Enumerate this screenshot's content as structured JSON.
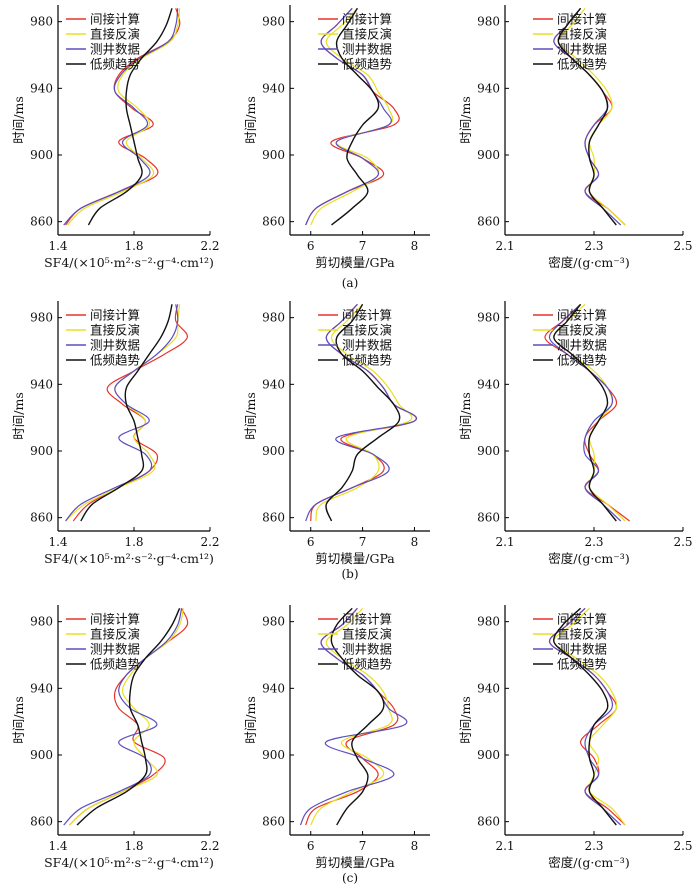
{
  "legend_labels": [
    "间接计算",
    "直接反演",
    "测井数据",
    "低频趋势"
  ],
  "colors": {
    "indirect": "#e8332a",
    "direct": "#e8e020",
    "well": "#5b4fc0",
    "trend": "#111111",
    "axis": "#000000"
  },
  "captions": [
    "(a)",
    "(b)",
    "(c)"
  ],
  "chart_data": [
    {
      "row": 0,
      "col": 0,
      "type": "line",
      "xlabel": "SF4/(×10⁵·m²·s⁻²·g⁻⁴·cm¹²)",
      "ylabel": "时间/ms",
      "xlim": [
        1.4,
        2.2
      ],
      "ylim": [
        852,
        990
      ],
      "xticks": [
        "1.4",
        "1.8",
        "2.2"
      ],
      "xtick_values": [
        1.4,
        1.8,
        2.2
      ],
      "yticks": [
        "860",
        "900",
        "940",
        "980"
      ],
      "ytick_values": [
        860,
        900,
        940,
        980
      ],
      "y": [
        988,
        978,
        968,
        958,
        948,
        938,
        928,
        918,
        908,
        898,
        888,
        878,
        868,
        858
      ],
      "series": [
        {
          "name": "间接计算",
          "key": "indirect",
          "values": [
            2.02,
            2.04,
            1.98,
            1.82,
            1.72,
            1.7,
            1.79,
            1.9,
            1.72,
            1.86,
            1.92,
            1.72,
            1.52,
            1.44
          ]
        },
        {
          "name": "直接反演",
          "key": "direct",
          "values": [
            2.04,
            2.03,
            1.99,
            1.84,
            1.74,
            1.72,
            1.82,
            1.88,
            1.76,
            1.84,
            1.9,
            1.74,
            1.54,
            1.45
          ]
        },
        {
          "name": "测井数据",
          "key": "well",
          "values": [
            2.03,
            2.02,
            1.98,
            1.83,
            1.73,
            1.7,
            1.8,
            1.87,
            1.74,
            1.83,
            1.88,
            1.72,
            1.52,
            1.43
          ]
        },
        {
          "name": "低频趋势",
          "key": "trend",
          "values": [
            2.0,
            1.97,
            1.92,
            1.84,
            1.78,
            1.76,
            1.76,
            1.78,
            1.8,
            1.82,
            1.84,
            1.76,
            1.62,
            1.56
          ]
        }
      ]
    },
    {
      "row": 0,
      "col": 1,
      "type": "line",
      "xlabel": "剪切模量/GPa",
      "ylabel": "时间/ms",
      "xlim": [
        5.6,
        8.3
      ],
      "ylim": [
        852,
        990
      ],
      "xticks": [
        "6",
        "7",
        "8"
      ],
      "xtick_values": [
        6,
        7,
        8
      ],
      "yticks": [
        "860",
        "900",
        "940",
        "980"
      ],
      "ytick_values": [
        860,
        900,
        940,
        980
      ],
      "y": [
        988,
        978,
        968,
        958,
        948,
        938,
        928,
        918,
        908,
        898,
        888,
        878,
        868,
        858
      ],
      "series": [
        {
          "name": "间接计算",
          "key": "indirect",
          "values": [
            6.8,
            6.5,
            6.2,
            6.5,
            7.0,
            7.2,
            7.6,
            7.6,
            6.4,
            7.0,
            7.4,
            6.7,
            6.1,
            5.9
          ]
        },
        {
          "name": "直接反演",
          "key": "direct",
          "values": [
            6.9,
            6.6,
            6.3,
            6.6,
            7.1,
            7.3,
            7.5,
            7.5,
            6.5,
            7.1,
            7.3,
            6.8,
            6.2,
            6.0
          ]
        },
        {
          "name": "测井数据",
          "key": "well",
          "values": [
            6.8,
            6.5,
            6.2,
            6.5,
            7.0,
            7.2,
            7.4,
            7.5,
            6.5,
            7.0,
            7.3,
            6.7,
            6.1,
            5.9
          ]
        },
        {
          "name": "低频趋势",
          "key": "trend",
          "values": [
            6.9,
            6.7,
            6.5,
            6.6,
            6.9,
            7.2,
            7.3,
            7.0,
            6.8,
            6.7,
            6.9,
            7.1,
            6.8,
            6.4
          ]
        }
      ]
    },
    {
      "row": 0,
      "col": 2,
      "type": "line",
      "xlabel": "密度/(g·cm⁻³)",
      "ylabel": "时间/ms",
      "xlim": [
        2.1,
        2.5
      ],
      "ylim": [
        852,
        990
      ],
      "xticks": [
        "2.1",
        "2.3",
        "2.5"
      ],
      "xtick_values": [
        2.1,
        2.3,
        2.5
      ],
      "yticks": [
        "860",
        "900",
        "940",
        "980"
      ],
      "ytick_values": [
        860,
        900,
        940,
        980
      ],
      "y": [
        988,
        978,
        968,
        958,
        948,
        938,
        928,
        918,
        908,
        898,
        888,
        878,
        868,
        858
      ],
      "series": [
        {
          "name": "间接计算",
          "key": "indirect",
          "values": [
            2.27,
            2.24,
            2.21,
            2.25,
            2.29,
            2.32,
            2.34,
            2.3,
            2.28,
            2.29,
            2.31,
            2.28,
            2.33,
            2.37
          ]
        },
        {
          "name": "直接反演",
          "key": "direct",
          "values": [
            2.28,
            2.25,
            2.22,
            2.26,
            2.3,
            2.33,
            2.34,
            2.31,
            2.29,
            2.3,
            2.3,
            2.29,
            2.33,
            2.37
          ]
        },
        {
          "name": "测井数据",
          "key": "well",
          "values": [
            2.27,
            2.24,
            2.21,
            2.25,
            2.29,
            2.32,
            2.33,
            2.3,
            2.28,
            2.29,
            2.31,
            2.28,
            2.32,
            2.36
          ]
        },
        {
          "name": "低频趋势",
          "key": "trend",
          "values": [
            2.27,
            2.24,
            2.22,
            2.25,
            2.29,
            2.32,
            2.33,
            2.31,
            2.29,
            2.29,
            2.3,
            2.29,
            2.32,
            2.35
          ]
        }
      ]
    },
    {
      "row": 1,
      "col": 0,
      "type": "line",
      "xlabel": "SF4/(×10⁵·m²·s⁻²·g⁻⁴·cm¹²)",
      "ylabel": "时间/ms",
      "xlim": [
        1.4,
        2.2
      ],
      "ylim": [
        852,
        990
      ],
      "xticks": [
        "1.4",
        "1.8",
        "2.2"
      ],
      "xtick_values": [
        1.4,
        1.8,
        2.2
      ],
      "yticks": [
        "860",
        "900",
        "940",
        "980"
      ],
      "ytick_values": [
        860,
        900,
        940,
        980
      ],
      "y": [
        988,
        978,
        968,
        958,
        948,
        938,
        928,
        918,
        908,
        898,
        888,
        878,
        868,
        858
      ],
      "series": [
        {
          "name": "间接计算",
          "key": "indirect",
          "values": [
            2.03,
            2.02,
            2.08,
            1.96,
            1.8,
            1.66,
            1.74,
            1.86,
            1.8,
            1.92,
            1.88,
            1.72,
            1.56,
            1.48
          ]
        },
        {
          "name": "直接反演",
          "key": "direct",
          "values": [
            2.04,
            2.03,
            2.02,
            1.92,
            1.8,
            1.7,
            1.76,
            1.86,
            1.8,
            1.88,
            1.9,
            1.72,
            1.54,
            1.44
          ]
        },
        {
          "name": "测井数据",
          "key": "well",
          "values": [
            2.02,
            2.03,
            2.0,
            1.92,
            1.8,
            1.7,
            1.76,
            1.88,
            1.72,
            1.86,
            1.88,
            1.7,
            1.52,
            1.44
          ]
        },
        {
          "name": "低频趋势",
          "key": "trend",
          "values": [
            2.0,
            1.98,
            1.94,
            1.88,
            1.82,
            1.76,
            1.76,
            1.8,
            1.82,
            1.84,
            1.84,
            1.72,
            1.58,
            1.52
          ]
        }
      ]
    },
    {
      "row": 1,
      "col": 1,
      "type": "line",
      "xlabel": "剪切模量/GPa",
      "ylabel": "时间/ms",
      "xlim": [
        5.6,
        8.3
      ],
      "ylim": [
        852,
        990
      ],
      "xticks": [
        "6",
        "7",
        "8"
      ],
      "xtick_values": [
        6,
        7,
        8
      ],
      "yticks": [
        "860",
        "900",
        "940",
        "980"
      ],
      "ytick_values": [
        860,
        900,
        940,
        980
      ],
      "y": [
        988,
        978,
        968,
        958,
        948,
        938,
        928,
        918,
        908,
        898,
        888,
        878,
        868,
        858
      ],
      "series": [
        {
          "name": "间接计算",
          "key": "indirect",
          "values": [
            6.9,
            6.6,
            6.3,
            6.6,
            7.1,
            7.4,
            7.6,
            8.0,
            6.6,
            7.2,
            7.4,
            6.8,
            6.1,
            6.0
          ]
        },
        {
          "name": "直接反演",
          "key": "direct",
          "values": [
            7.0,
            6.7,
            6.4,
            6.7,
            7.2,
            7.5,
            7.7,
            7.9,
            6.7,
            7.2,
            7.3,
            6.9,
            6.2,
            6.1
          ]
        },
        {
          "name": "测井数据",
          "key": "well",
          "values": [
            6.9,
            6.6,
            6.3,
            6.6,
            7.1,
            7.4,
            7.6,
            8.0,
            6.5,
            7.2,
            7.5,
            6.8,
            6.1,
            5.9
          ]
        },
        {
          "name": "低频趋势",
          "key": "trend",
          "values": [
            7.0,
            6.8,
            6.5,
            6.6,
            7.0,
            7.3,
            7.6,
            7.7,
            7.3,
            6.9,
            6.8,
            6.6,
            6.3,
            6.4
          ]
        }
      ]
    },
    {
      "row": 1,
      "col": 2,
      "type": "line",
      "xlabel": "密度/(g·cm⁻³)",
      "ylabel": "时间/ms",
      "xlim": [
        2.1,
        2.5
      ],
      "ylim": [
        852,
        990
      ],
      "xticks": [
        "2.1",
        "2.3",
        "2.5"
      ],
      "xtick_values": [
        2.1,
        2.3,
        2.5
      ],
      "yticks": [
        "860",
        "900",
        "940",
        "980"
      ],
      "ytick_values": [
        860,
        900,
        940,
        980
      ],
      "y": [
        988,
        978,
        968,
        958,
        948,
        938,
        928,
        918,
        908,
        898,
        888,
        878,
        868,
        858
      ],
      "series": [
        {
          "name": "间接计算",
          "key": "indirect",
          "values": [
            2.27,
            2.23,
            2.19,
            2.24,
            2.29,
            2.33,
            2.35,
            2.31,
            2.28,
            2.29,
            2.31,
            2.28,
            2.33,
            2.38
          ]
        },
        {
          "name": "直接反演",
          "key": "direct",
          "values": [
            2.28,
            2.24,
            2.21,
            2.25,
            2.3,
            2.33,
            2.34,
            2.31,
            2.29,
            2.3,
            2.3,
            2.29,
            2.33,
            2.37
          ]
        },
        {
          "name": "测井数据",
          "key": "well",
          "values": [
            2.27,
            2.23,
            2.2,
            2.24,
            2.29,
            2.33,
            2.34,
            2.3,
            2.28,
            2.28,
            2.31,
            2.28,
            2.32,
            2.36
          ]
        },
        {
          "name": "低频趋势",
          "key": "trend",
          "values": [
            2.27,
            2.24,
            2.21,
            2.25,
            2.29,
            2.32,
            2.33,
            2.31,
            2.29,
            2.29,
            2.3,
            2.29,
            2.32,
            2.35
          ]
        }
      ]
    },
    {
      "row": 2,
      "col": 0,
      "type": "line",
      "xlabel": "SF4/(×10⁵·m²·s⁻²·g⁻⁴·cm¹²)",
      "ylabel": "时间/ms",
      "xlim": [
        1.4,
        2.2
      ],
      "ylim": [
        852,
        990
      ],
      "xticks": [
        "1.4",
        "1.8",
        "2.2"
      ],
      "xtick_values": [
        1.4,
        1.8,
        2.2
      ],
      "yticks": [
        "860",
        "900",
        "940",
        "980"
      ],
      "ytick_values": [
        860,
        900,
        940,
        980
      ],
      "y": [
        988,
        978,
        968,
        958,
        948,
        938,
        928,
        918,
        908,
        898,
        888,
        878,
        868,
        858
      ],
      "series": [
        {
          "name": "间接计算",
          "key": "indirect",
          "values": [
            2.05,
            2.08,
            1.98,
            1.86,
            1.76,
            1.7,
            1.72,
            1.82,
            1.8,
            1.96,
            1.9,
            1.74,
            1.56,
            1.46
          ]
        },
        {
          "name": "直接反演",
          "key": "direct",
          "values": [
            2.06,
            2.04,
            1.98,
            1.86,
            1.78,
            1.74,
            1.8,
            1.88,
            1.8,
            1.86,
            1.92,
            1.74,
            1.56,
            1.46
          ]
        },
        {
          "name": "测井数据",
          "key": "well",
          "values": [
            2.05,
            2.03,
            1.97,
            1.86,
            1.76,
            1.72,
            1.78,
            1.92,
            1.72,
            1.86,
            1.88,
            1.72,
            1.52,
            1.43
          ]
        },
        {
          "name": "低频趋势",
          "key": "trend",
          "values": [
            2.04,
            2.0,
            1.94,
            1.86,
            1.8,
            1.78,
            1.78,
            1.82,
            1.84,
            1.86,
            1.86,
            1.76,
            1.6,
            1.5
          ]
        }
      ]
    },
    {
      "row": 2,
      "col": 1,
      "type": "line",
      "xlabel": "剪切模量/GPa",
      "ylabel": "时间/ms",
      "xlim": [
        5.6,
        8.3
      ],
      "ylim": [
        852,
        990
      ],
      "xticks": [
        "6",
        "7",
        "8"
      ],
      "xtick_values": [
        6,
        7,
        8
      ],
      "yticks": [
        "860",
        "900",
        "940",
        "980"
      ],
      "ytick_values": [
        860,
        900,
        940,
        980
      ],
      "y": [
        988,
        978,
        968,
        958,
        948,
        938,
        928,
        918,
        908,
        898,
        888,
        878,
        868,
        858
      ],
      "series": [
        {
          "name": "间接计算",
          "key": "indirect",
          "values": [
            6.9,
            6.6,
            6.2,
            6.5,
            7.0,
            7.3,
            7.6,
            7.6,
            6.7,
            7.0,
            7.3,
            6.9,
            6.1,
            5.9
          ]
        },
        {
          "name": "直接反演",
          "key": "direct",
          "values": [
            7.0,
            6.7,
            6.3,
            6.6,
            7.1,
            7.4,
            7.5,
            7.5,
            6.6,
            7.1,
            7.4,
            6.8,
            6.2,
            6.0
          ]
        },
        {
          "name": "测井数据",
          "key": "well",
          "values": [
            6.9,
            6.6,
            6.2,
            6.5,
            7.0,
            7.3,
            7.5,
            7.8,
            6.3,
            7.0,
            7.6,
            6.7,
            6.0,
            5.8
          ]
        },
        {
          "name": "低频趋势",
          "key": "trend",
          "values": [
            6.8,
            6.5,
            6.4,
            6.6,
            6.9,
            7.3,
            7.4,
            7.1,
            6.8,
            6.9,
            7.1,
            7.0,
            6.7,
            6.5
          ]
        }
      ]
    },
    {
      "row": 2,
      "col": 2,
      "type": "line",
      "xlabel": "密度/(g·cm⁻³)",
      "ylabel": "时间/ms",
      "xlim": [
        2.1,
        2.5
      ],
      "ylim": [
        852,
        990
      ],
      "xticks": [
        "2.1",
        "2.3",
        "2.5"
      ],
      "xtick_values": [
        2.1,
        2.3,
        2.5
      ],
      "yticks": [
        "860",
        "900",
        "940",
        "980"
      ],
      "ytick_values": [
        860,
        900,
        940,
        980
      ],
      "y": [
        988,
        978,
        968,
        958,
        948,
        938,
        928,
        918,
        908,
        898,
        888,
        878,
        868,
        858
      ],
      "series": [
        {
          "name": "间接计算",
          "key": "indirect",
          "values": [
            2.28,
            2.24,
            2.2,
            2.25,
            2.3,
            2.33,
            2.35,
            2.31,
            2.27,
            2.3,
            2.31,
            2.28,
            2.33,
            2.37
          ]
        },
        {
          "name": "直接反演",
          "key": "direct",
          "values": [
            2.29,
            2.25,
            2.21,
            2.26,
            2.31,
            2.34,
            2.35,
            2.32,
            2.29,
            2.31,
            2.3,
            2.29,
            2.34,
            2.37
          ]
        },
        {
          "name": "测井数据",
          "key": "well",
          "values": [
            2.28,
            2.24,
            2.2,
            2.25,
            2.3,
            2.33,
            2.34,
            2.3,
            2.28,
            2.29,
            2.31,
            2.28,
            2.32,
            2.36
          ]
        },
        {
          "name": "低频趋势",
          "key": "trend",
          "values": [
            2.27,
            2.23,
            2.21,
            2.25,
            2.29,
            2.32,
            2.33,
            2.3,
            2.29,
            2.29,
            2.3,
            2.29,
            2.32,
            2.35
          ]
        }
      ]
    }
  ]
}
